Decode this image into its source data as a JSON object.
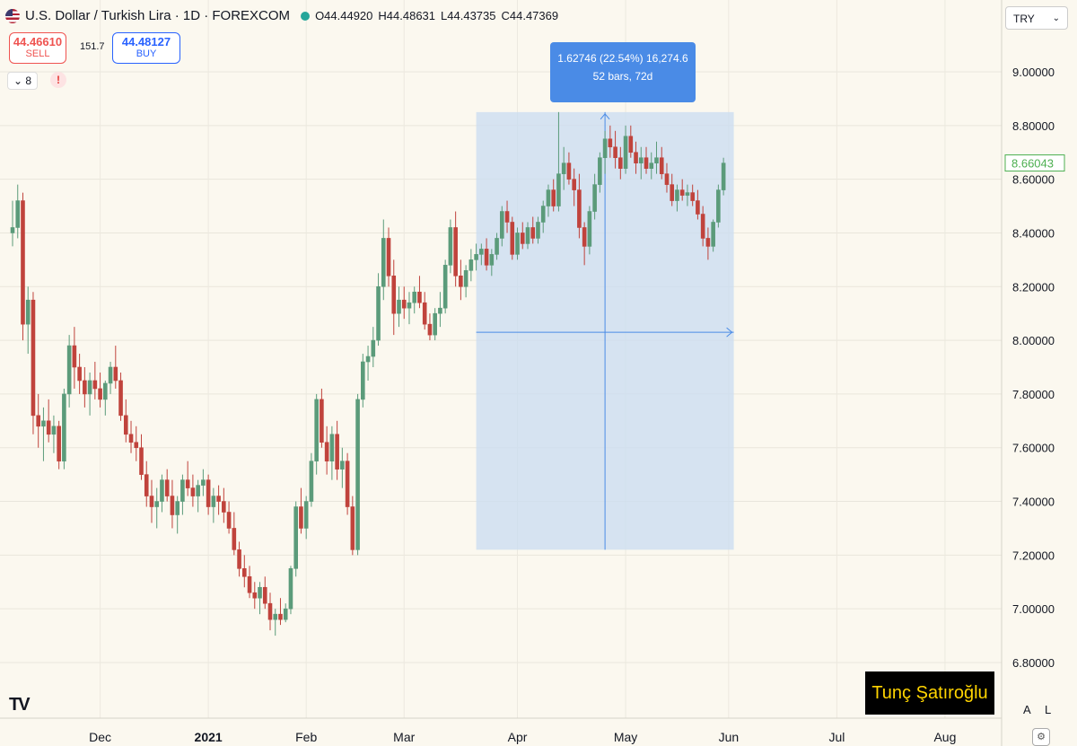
{
  "header": {
    "symbol_title": "U.S. Dollar / Turkish Lira · 1D · FOREXCOM",
    "open": "O44.44920",
    "high": "H44.48631",
    "low": "L44.43735",
    "close": "C44.47369"
  },
  "trade": {
    "sell_price": "44.46610",
    "sell_label": "SELL",
    "spread": "151.7",
    "buy_price": "44.48127",
    "buy_label": "BUY"
  },
  "indicators_toggle": "8",
  "warning_icon": "!",
  "currency_button": "TRY",
  "measure_tool": {
    "line1": "1.62746 (22.54%) 16,274.6",
    "line2": "52 bars, 72d"
  },
  "watermark": "Tunç Şatıroğlu",
  "logo_text": "TV",
  "scale_buttons": [
    "A",
    "L"
  ],
  "colors": {
    "up": "#5b9b7a",
    "down": "#c0433c",
    "measure_fill": "#c9dcf2",
    "measure_line": "#4a8be6",
    "last_price": "#4caf50"
  },
  "chart_data": {
    "type": "candlestick",
    "ylim": [
      6.7,
      9.3
    ],
    "y_ticks": [
      "9.00000",
      "8.80000",
      "8.60000",
      "8.40000",
      "8.20000",
      "8.00000",
      "7.80000",
      "7.60000",
      "7.40000",
      "7.20000",
      "7.00000",
      "6.80000"
    ],
    "last_price_label": "8.66043",
    "last_price": 8.66043,
    "x_labels": [
      {
        "label": "Dec",
        "index": 17
      },
      {
        "label": "2021",
        "index": 38
      },
      {
        "label": "Feb",
        "index": 57
      },
      {
        "label": "Mar",
        "index": 76
      },
      {
        "label": "Apr",
        "index": 98
      },
      {
        "label": "May",
        "index": 119
      },
      {
        "label": "Jun",
        "index": 139
      },
      {
        "label": "Jul",
        "index": 160
      },
      {
        "label": "Aug",
        "index": 181
      }
    ],
    "measure_range": {
      "start_index": 90,
      "end_index": 140,
      "low": 7.22,
      "high": 8.85
    },
    "candles": [
      [
        8.4,
        8.52,
        8.35,
        8.42
      ],
      [
        8.42,
        8.58,
        8.38,
        8.52
      ],
      [
        8.52,
        8.55,
        8.0,
        8.06
      ],
      [
        8.06,
        8.2,
        7.95,
        8.15
      ],
      [
        8.15,
        8.18,
        7.65,
        7.72
      ],
      [
        7.72,
        7.8,
        7.6,
        7.68
      ],
      [
        7.68,
        7.75,
        7.55,
        7.7
      ],
      [
        7.7,
        7.78,
        7.62,
        7.65
      ],
      [
        7.65,
        7.72,
        7.58,
        7.68
      ],
      [
        7.68,
        7.7,
        7.52,
        7.55
      ],
      [
        7.55,
        7.82,
        7.52,
        7.8
      ],
      [
        7.8,
        8.02,
        7.75,
        7.98
      ],
      [
        7.98,
        8.05,
        7.82,
        7.9
      ],
      [
        7.9,
        7.95,
        7.8,
        7.85
      ],
      [
        7.85,
        7.9,
        7.75,
        7.8
      ],
      [
        7.8,
        7.88,
        7.72,
        7.85
      ],
      [
        7.85,
        7.92,
        7.78,
        7.82
      ],
      [
        7.82,
        7.88,
        7.75,
        7.78
      ],
      [
        7.78,
        7.85,
        7.72,
        7.84
      ],
      [
        7.84,
        7.92,
        7.8,
        7.9
      ],
      [
        7.9,
        7.98,
        7.82,
        7.85
      ],
      [
        7.85,
        7.88,
        7.7,
        7.72
      ],
      [
        7.72,
        7.78,
        7.62,
        7.65
      ],
      [
        7.65,
        7.7,
        7.58,
        7.62
      ],
      [
        7.62,
        7.68,
        7.55,
        7.6
      ],
      [
        7.6,
        7.65,
        7.48,
        7.5
      ],
      [
        7.5,
        7.55,
        7.38,
        7.42
      ],
      [
        7.42,
        7.48,
        7.32,
        7.38
      ],
      [
        7.38,
        7.45,
        7.3,
        7.4
      ],
      [
        7.4,
        7.5,
        7.36,
        7.48
      ],
      [
        7.48,
        7.52,
        7.4,
        7.42
      ],
      [
        7.42,
        7.48,
        7.3,
        7.35
      ],
      [
        7.35,
        7.42,
        7.28,
        7.4
      ],
      [
        7.4,
        7.5,
        7.35,
        7.48
      ],
      [
        7.48,
        7.55,
        7.42,
        7.45
      ],
      [
        7.45,
        7.5,
        7.38,
        7.42
      ],
      [
        7.42,
        7.48,
        7.36,
        7.46
      ],
      [
        7.46,
        7.52,
        7.42,
        7.48
      ],
      [
        7.48,
        7.5,
        7.35,
        7.38
      ],
      [
        7.38,
        7.45,
        7.32,
        7.42
      ],
      [
        7.42,
        7.46,
        7.35,
        7.4
      ],
      [
        7.4,
        7.45,
        7.32,
        7.36
      ],
      [
        7.36,
        7.4,
        7.28,
        7.3
      ],
      [
        7.3,
        7.36,
        7.2,
        7.22
      ],
      [
        7.22,
        7.25,
        7.12,
        7.15
      ],
      [
        7.15,
        7.2,
        7.08,
        7.12
      ],
      [
        7.12,
        7.16,
        7.04,
        7.06
      ],
      [
        7.06,
        7.1,
        7.0,
        7.04
      ],
      [
        7.04,
        7.1,
        6.98,
        7.08
      ],
      [
        7.08,
        7.12,
        7.0,
        7.02
      ],
      [
        7.02,
        7.06,
        6.92,
        6.96
      ],
      [
        6.96,
        7.0,
        6.9,
        6.98
      ],
      [
        6.98,
        7.04,
        6.94,
        6.96
      ],
      [
        6.96,
        7.02,
        6.95,
        7.0
      ],
      [
        7.0,
        7.16,
        6.98,
        7.15
      ],
      [
        7.15,
        7.4,
        7.12,
        7.38
      ],
      [
        7.38,
        7.45,
        7.28,
        7.3
      ],
      [
        7.3,
        7.42,
        7.26,
        7.4
      ],
      [
        7.4,
        7.58,
        7.38,
        7.55
      ],
      [
        7.55,
        7.8,
        7.5,
        7.78
      ],
      [
        7.78,
        7.82,
        7.6,
        7.62
      ],
      [
        7.62,
        7.68,
        7.5,
        7.55
      ],
      [
        7.55,
        7.68,
        7.48,
        7.65
      ],
      [
        7.65,
        7.7,
        7.48,
        7.52
      ],
      [
        7.52,
        7.6,
        7.45,
        7.55
      ],
      [
        7.55,
        7.58,
        7.35,
        7.38
      ],
      [
        7.38,
        7.42,
        7.2,
        7.22
      ],
      [
        7.22,
        7.8,
        7.2,
        7.78
      ],
      [
        7.78,
        7.95,
        7.75,
        7.92
      ],
      [
        7.92,
        7.98,
        7.85,
        7.94
      ],
      [
        7.94,
        8.05,
        7.9,
        8.0
      ],
      [
        8.0,
        8.25,
        7.98,
        8.2
      ],
      [
        8.2,
        8.45,
        8.15,
        8.38
      ],
      [
        8.38,
        8.42,
        8.2,
        8.24
      ],
      [
        8.24,
        8.3,
        8.02,
        8.1
      ],
      [
        8.1,
        8.2,
        8.05,
        8.15
      ],
      [
        8.15,
        8.2,
        8.08,
        8.12
      ],
      [
        8.12,
        8.18,
        8.06,
        8.14
      ],
      [
        8.14,
        8.2,
        8.1,
        8.18
      ],
      [
        8.18,
        8.24,
        8.12,
        8.14
      ],
      [
        8.14,
        8.18,
        8.04,
        8.06
      ],
      [
        8.06,
        8.1,
        8.0,
        8.02
      ],
      [
        8.02,
        8.12,
        8.0,
        8.1
      ],
      [
        8.1,
        8.18,
        8.05,
        8.12
      ],
      [
        8.12,
        8.3,
        8.1,
        8.28
      ],
      [
        8.28,
        8.45,
        8.25,
        8.42
      ],
      [
        8.42,
        8.48,
        8.2,
        8.24
      ],
      [
        8.24,
        8.3,
        8.15,
        8.2
      ],
      [
        8.2,
        8.28,
        8.16,
        8.26
      ],
      [
        8.26,
        8.34,
        8.22,
        8.3
      ],
      [
        8.3,
        8.36,
        8.26,
        8.32
      ],
      [
        8.32,
        8.36,
        8.28,
        8.34
      ],
      [
        8.34,
        8.38,
        8.26,
        8.28
      ],
      [
        8.28,
        8.34,
        8.24,
        8.32
      ],
      [
        8.32,
        8.4,
        8.3,
        8.38
      ],
      [
        8.38,
        8.5,
        8.35,
        8.48
      ],
      [
        8.48,
        8.52,
        8.4,
        8.44
      ],
      [
        8.44,
        8.46,
        8.3,
        8.32
      ],
      [
        8.32,
        8.42,
        8.3,
        8.4
      ],
      [
        8.4,
        8.44,
        8.34,
        8.36
      ],
      [
        8.36,
        8.44,
        8.34,
        8.42
      ],
      [
        8.42,
        8.46,
        8.36,
        8.38
      ],
      [
        8.38,
        8.46,
        8.36,
        8.44
      ],
      [
        8.44,
        8.52,
        8.4,
        8.5
      ],
      [
        8.5,
        8.58,
        8.46,
        8.56
      ],
      [
        8.56,
        8.6,
        8.48,
        8.5
      ],
      [
        8.5,
        8.85,
        8.48,
        8.62
      ],
      [
        8.62,
        8.72,
        8.56,
        8.66
      ],
      [
        8.66,
        8.7,
        8.58,
        8.6
      ],
      [
        8.6,
        8.64,
        8.5,
        8.56
      ],
      [
        8.56,
        8.62,
        8.38,
        8.42
      ],
      [
        8.42,
        8.44,
        8.28,
        8.35
      ],
      [
        8.35,
        8.5,
        8.32,
        8.48
      ],
      [
        8.48,
        8.62,
        8.45,
        8.58
      ],
      [
        8.58,
        8.7,
        8.55,
        8.68
      ],
      [
        8.68,
        8.78,
        8.62,
        8.75
      ],
      [
        8.75,
        8.8,
        8.68,
        8.72
      ],
      [
        8.72,
        8.78,
        8.64,
        8.68
      ],
      [
        8.68,
        8.72,
        8.6,
        8.64
      ],
      [
        8.64,
        8.8,
        8.62,
        8.76
      ],
      [
        8.76,
        8.8,
        8.68,
        8.7
      ],
      [
        8.7,
        8.74,
        8.62,
        8.66
      ],
      [
        8.66,
        8.72,
        8.6,
        8.68
      ],
      [
        8.68,
        8.72,
        8.62,
        8.64
      ],
      [
        8.64,
        8.7,
        8.6,
        8.66
      ],
      [
        8.66,
        8.74,
        8.62,
        8.68
      ],
      [
        8.68,
        8.72,
        8.6,
        8.62
      ],
      [
        8.62,
        8.66,
        8.55,
        8.58
      ],
      [
        8.58,
        8.62,
        8.5,
        8.52
      ],
      [
        8.52,
        8.58,
        8.48,
        8.56
      ],
      [
        8.56,
        8.6,
        8.52,
        8.54
      ],
      [
        8.54,
        8.58,
        8.5,
        8.55
      ],
      [
        8.55,
        8.58,
        8.5,
        8.52
      ],
      [
        8.52,
        8.56,
        8.45,
        8.47
      ],
      [
        8.47,
        8.5,
        8.35,
        8.38
      ],
      [
        8.38,
        8.42,
        8.3,
        8.35
      ],
      [
        8.35,
        8.45,
        8.33,
        8.44
      ],
      [
        8.44,
        8.58,
        8.42,
        8.56
      ],
      [
        8.56,
        8.68,
        8.54,
        8.66
      ]
    ]
  }
}
